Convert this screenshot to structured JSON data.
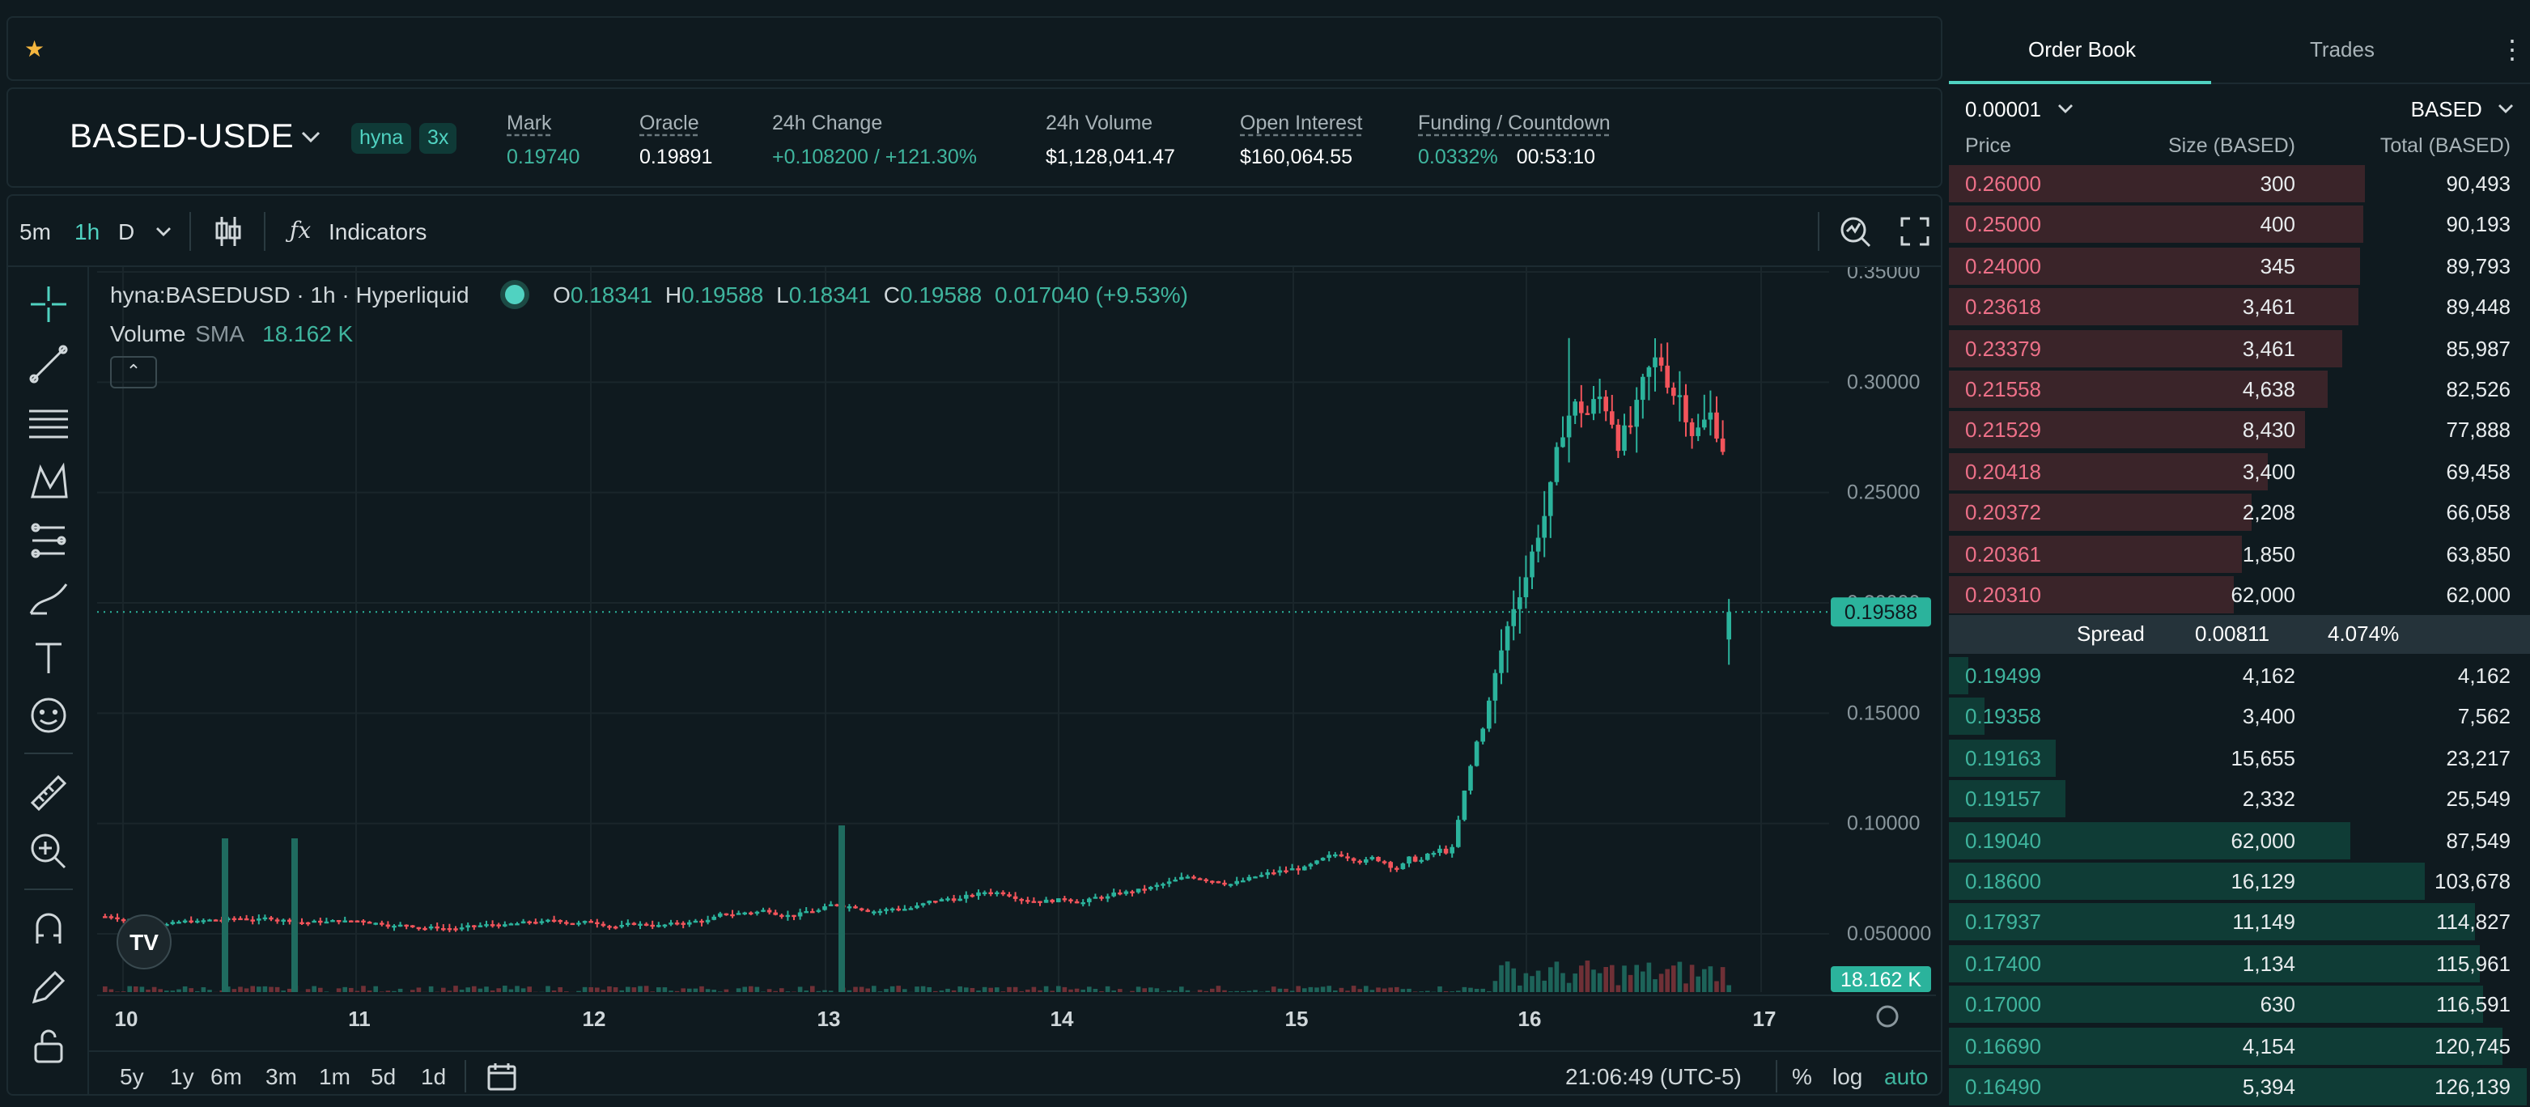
{
  "header": {
    "pair": "BASED-USDE",
    "badges": [
      "hyna",
      "3x"
    ],
    "stats": [
      {
        "label": "Mark",
        "value": "0.19740",
        "green": true,
        "dashed": true
      },
      {
        "label": "Oracle",
        "value": "0.19891",
        "green": false,
        "dashed": true
      },
      {
        "label": "24h Change",
        "value": "+0.108200 / +121.30%",
        "green": true,
        "dashed": false
      },
      {
        "label": "24h Volume",
        "value": "$1,128,041.47",
        "green": false,
        "dashed": false
      },
      {
        "label": "Open Interest",
        "value": "$160,064.55",
        "green": false,
        "dashed": true
      },
      {
        "label": "Funding / Countdown",
        "value": "0.0332%",
        "value2": "00:53:10",
        "green": true,
        "dashed": true
      }
    ]
  },
  "toolbar": {
    "timeframes": [
      "5m",
      "1h",
      "D"
    ],
    "active_timeframe": "1h",
    "indicators_label": "Indicators"
  },
  "legend": {
    "symbol": "hyna:BASEDUSD · 1h · Hyperliquid",
    "o_label": "O",
    "o": "0.18341",
    "h_label": "H",
    "h": "0.19588",
    "l_label": "L",
    "l": "0.18341",
    "c_label": "C",
    "c": "0.19588",
    "change": "0.017040 (+9.53%)",
    "volume_label": "Volume",
    "volume_sma": "SMA",
    "volume_value": "18.162 K"
  },
  "chart_data": {
    "type": "candlestick",
    "x_ticks": [
      "10",
      "11",
      "12",
      "13",
      "14",
      "15",
      "16",
      "17"
    ],
    "y_ticks": [
      "0.35000",
      "0.30000",
      "0.25000",
      "0.20000",
      "0.15000",
      "0.10000",
      "0.050000"
    ],
    "ylim": [
      0.03,
      0.36
    ],
    "last_price_label": "0.19588",
    "last_volume_label": "18.162 K",
    "highs_lows": {
      "peak_high": 0.32,
      "last_close": 0.19588
    }
  },
  "bottom": {
    "ranges": [
      "5y",
      "1y",
      "6m",
      "3m",
      "1m",
      "5d",
      "1d"
    ],
    "time": "21:06:49 (UTC-5)",
    "pct": "%",
    "log": "log",
    "auto": "auto"
  },
  "orderbook": {
    "tabs": [
      "Order Book",
      "Trades"
    ],
    "tick": "0.00001",
    "unit": "BASED",
    "headers": [
      "Price",
      "Size (BASED)",
      "Total (BASED)"
    ],
    "asks": [
      {
        "price": "0.26000",
        "size": "300",
        "total": "90,493",
        "depth": 0.715
      },
      {
        "price": "0.25000",
        "size": "400",
        "total": "90,193",
        "depth": 0.712
      },
      {
        "price": "0.24000",
        "size": "345",
        "total": "89,793",
        "depth": 0.708
      },
      {
        "price": "0.23618",
        "size": "3,461",
        "total": "89,448",
        "depth": 0.705
      },
      {
        "price": "0.23379",
        "size": "3,461",
        "total": "85,987",
        "depth": 0.678
      },
      {
        "price": "0.21558",
        "size": "4,638",
        "total": "82,526",
        "depth": 0.651
      },
      {
        "price": "0.21529",
        "size": "8,430",
        "total": "77,888",
        "depth": 0.614
      },
      {
        "price": "0.20418",
        "size": "3,400",
        "total": "69,458",
        "depth": 0.548
      },
      {
        "price": "0.20372",
        "size": "2,208",
        "total": "66,058",
        "depth": 0.521
      },
      {
        "price": "0.20361",
        "size": "1,850",
        "total": "63,850",
        "depth": 0.503
      },
      {
        "price": "0.20310",
        "size": "62,000",
        "total": "62,000",
        "depth": 0.489
      }
    ],
    "spread": {
      "label": "Spread",
      "value": "0.00811",
      "pct": "4.074%"
    },
    "bids": [
      {
        "price": "0.19499",
        "size": "4,162",
        "total": "4,162",
        "depth": 0.033
      },
      {
        "price": "0.19358",
        "size": "3,400",
        "total": "7,562",
        "depth": 0.06
      },
      {
        "price": "0.19163",
        "size": "15,655",
        "total": "23,217",
        "depth": 0.183
      },
      {
        "price": "0.19157",
        "size": "2,332",
        "total": "25,549",
        "depth": 0.201
      },
      {
        "price": "0.19040",
        "size": "62,000",
        "total": "87,549",
        "depth": 0.69
      },
      {
        "price": "0.18600",
        "size": "16,129",
        "total": "103,678",
        "depth": 0.818
      },
      {
        "price": "0.17937",
        "size": "11,149",
        "total": "114,827",
        "depth": 0.905
      },
      {
        "price": "0.17400",
        "size": "1,134",
        "total": "115,961",
        "depth": 0.914
      },
      {
        "price": "0.17000",
        "size": "630",
        "total": "116,591",
        "depth": 0.919
      },
      {
        "price": "0.16690",
        "size": "4,154",
        "total": "120,745",
        "depth": 0.952
      },
      {
        "price": "0.16490",
        "size": "5,394",
        "total": "126,139",
        "depth": 0.995
      }
    ]
  },
  "colors": {
    "up": "#2bb39c",
    "down": "#f2545b",
    "accent": "#50d2c1",
    "ask_bar": "#3a2429",
    "bid_bar": "#0f3c36"
  }
}
